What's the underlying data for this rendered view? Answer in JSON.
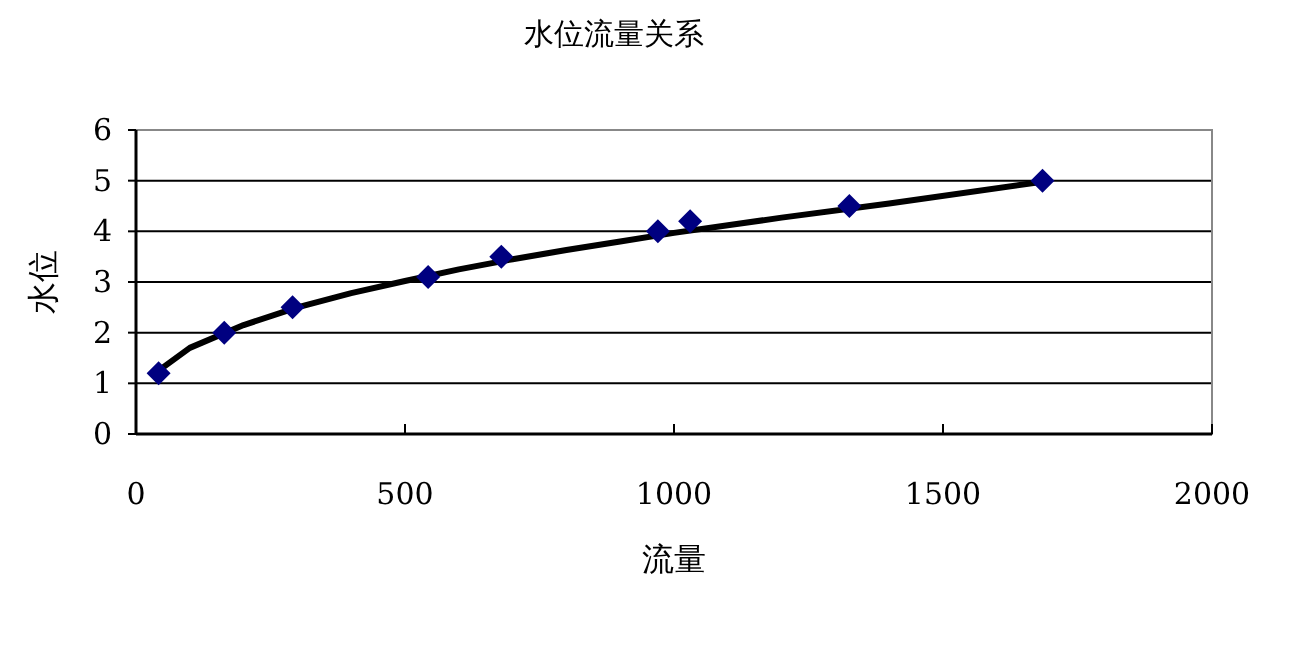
{
  "chart_data": {
    "type": "scatter",
    "title": "水位流量关系",
    "xlabel": "流量",
    "ylabel": "水位",
    "xlim": [
      0,
      2000
    ],
    "xticks": [
      0,
      500,
      1000,
      1500,
      2000
    ],
    "ylim": [
      0,
      6
    ],
    "yticks": [
      0,
      1,
      2,
      3,
      4,
      5,
      6
    ],
    "grid": "y",
    "series": [
      {
        "type": "scatter",
        "marker": "diamond",
        "color": "#000080",
        "x": [
          42,
          164,
          291,
          543,
          679,
          970,
          1030,
          1326,
          1685
        ],
        "values": [
          1.2,
          2.0,
          2.5,
          3.1,
          3.5,
          4.0,
          4.2,
          4.5,
          5.0
        ]
      },
      {
        "type": "line",
        "marker": "none",
        "color": "#000000",
        "x": [
          42,
          100,
          200,
          300,
          400,
          500,
          600,
          700,
          800,
          900,
          1000,
          1200,
          1400,
          1685
        ],
        "values": [
          1.25,
          1.7,
          2.15,
          2.5,
          2.78,
          3.02,
          3.25,
          3.45,
          3.63,
          3.8,
          3.97,
          4.27,
          4.55,
          4.98
        ]
      }
    ]
  }
}
